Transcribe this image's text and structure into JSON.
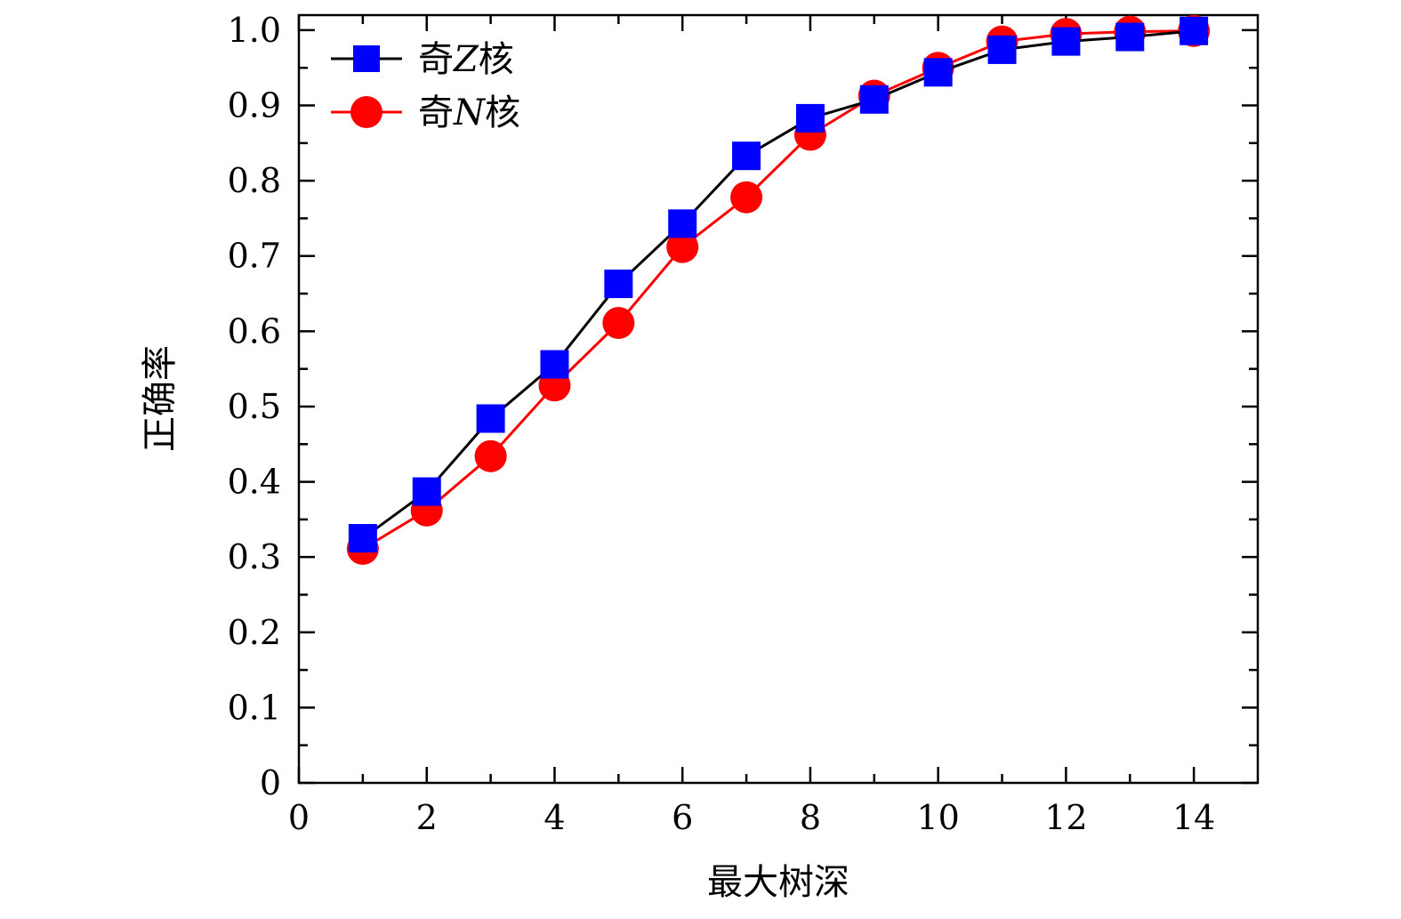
{
  "chart_data": {
    "type": "line",
    "xlabel": "最大树深",
    "ylabel": "正确率",
    "xlim": [
      0,
      15
    ],
    "ylim": [
      0,
      1.02
    ],
    "xticks": [
      0,
      2,
      4,
      6,
      8,
      10,
      12,
      14
    ],
    "xtick_labels": [
      "0",
      "2",
      "4",
      "6",
      "8",
      "10",
      "12",
      "14"
    ],
    "yticks": [
      0,
      0.1,
      0.2,
      0.3,
      0.4,
      0.5,
      0.6,
      0.7,
      0.8,
      0.9,
      1.0
    ],
    "ytick_labels": [
      "0",
      "0.1",
      "0.2",
      "0.3",
      "0.4",
      "0.5",
      "0.6",
      "0.7",
      "0.8",
      "0.9",
      "1.0"
    ],
    "grid": false,
    "legend_position": "top-left",
    "x": [
      1,
      2,
      3,
      4,
      5,
      6,
      7,
      8,
      9,
      10,
      11,
      12,
      13,
      14
    ],
    "series": [
      {
        "name_prefix": "奇",
        "name_var": "Z",
        "name_suffix": "核",
        "line_color": "#000000",
        "marker_color": "#0000ff",
        "marker": "square",
        "values": [
          0.325,
          0.387,
          0.484,
          0.556,
          0.663,
          0.743,
          0.833,
          0.883,
          0.908,
          0.944,
          0.974,
          0.985,
          0.991,
          0.999
        ]
      },
      {
        "name_prefix": "奇",
        "name_var": "N",
        "name_suffix": "核",
        "line_color": "#ff0000",
        "marker_color": "#ff0000",
        "marker": "circle",
        "values": [
          0.311,
          0.362,
          0.434,
          0.528,
          0.611,
          0.712,
          0.778,
          0.861,
          0.913,
          0.95,
          0.985,
          0.995,
          0.998,
          0.999
        ]
      }
    ]
  }
}
